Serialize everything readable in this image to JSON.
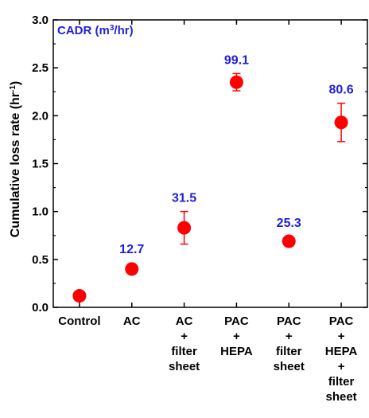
{
  "chart_data": {
    "type": "scatter",
    "title": "",
    "xlabel": "",
    "ylabel_main": "Cumulative loss rate (hr",
    "ylabel_sup": "-1",
    "ylabel_close": ")",
    "annotation_main": "CADR (m",
    "annotation_sup": "3",
    "annotation_close": "/hr)",
    "ylim": [
      0,
      3.0
    ],
    "yticks": [
      "0.0",
      "0.5",
      "1.0",
      "1.5",
      "2.0",
      "2.5",
      "3.0"
    ],
    "ytick_values": [
      0,
      0.5,
      1.0,
      1.5,
      2.0,
      2.5,
      3.0
    ],
    "marker_color": "#ff0000",
    "label_color": "#1f1fd8",
    "categories": [
      [
        "Control"
      ],
      [
        "AC"
      ],
      [
        "AC",
        "+",
        "filter",
        "sheet"
      ],
      [
        "PAC",
        "+",
        "HEPA"
      ],
      [
        "PAC",
        "+",
        "filter",
        "sheet"
      ],
      [
        "PAC",
        "+",
        "HEPA",
        "+",
        "filter",
        "sheet"
      ]
    ],
    "values": [
      0.12,
      0.4,
      0.83,
      2.35,
      0.69,
      1.93
    ],
    "errors": [
      0.0,
      0.0,
      0.17,
      0.09,
      0.05,
      0.2
    ],
    "cadr_labels": [
      "",
      "12.7",
      "31.5",
      "99.1",
      "25.3",
      "80.6"
    ]
  }
}
